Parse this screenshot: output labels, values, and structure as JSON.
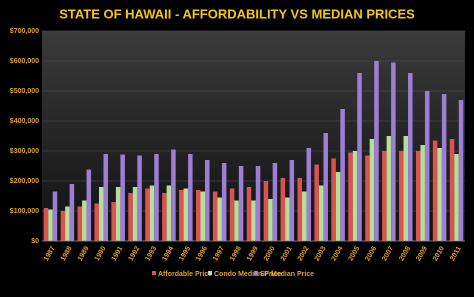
{
  "chart_data": {
    "type": "bar",
    "title": "STATE OF HAWAII - AFFORDABILITY VS MEDIAN PRICES",
    "categories": [
      "1987",
      "1988",
      "1989",
      "1990",
      "1991",
      "1992",
      "1993",
      "1994",
      "1995",
      "1996",
      "1997",
      "1998",
      "1999",
      "2000",
      "2001",
      "2002",
      "2003",
      "2004",
      "2005",
      "2006",
      "2007",
      "2008",
      "2009",
      "2010",
      "2011"
    ],
    "series": [
      {
        "name": "Affordable Price",
        "color": "#d9534f",
        "values": [
          110000,
          100000,
          115000,
          125000,
          130000,
          160000,
          175000,
          160000,
          170000,
          170000,
          165000,
          175000,
          180000,
          200000,
          210000,
          210000,
          255000,
          275000,
          295000,
          285000,
          300000,
          300000,
          300000,
          335000,
          340000
        ]
      },
      {
        "name": "Condo Median Price",
        "color": "#b8dc9a",
        "values": [
          105000,
          115000,
          135000,
          180000,
          180000,
          180000,
          185000,
          185000,
          175000,
          165000,
          145000,
          135000,
          135000,
          140000,
          145000,
          165000,
          185000,
          230000,
          300000,
          340000,
          350000,
          350000,
          320000,
          310000,
          290000
        ]
      },
      {
        "name": "SF Median Price",
        "color": "#9b7fd4",
        "values": [
          165000,
          190000,
          238000,
          290000,
          288000,
          285000,
          290000,
          305000,
          290000,
          270000,
          260000,
          250000,
          250000,
          260000,
          270000,
          310000,
          360000,
          440000,
          560000,
          600000,
          595000,
          560000,
          500000,
          490000,
          470000
        ]
      }
    ],
    "ylim": [
      0,
      700000
    ],
    "yticks": [
      {
        "value": 0,
        "label": "$0"
      },
      {
        "value": 100000,
        "label": "$100,000"
      },
      {
        "value": 200000,
        "label": "$200,000"
      },
      {
        "value": 300000,
        "label": "$300,000"
      },
      {
        "value": 400000,
        "label": "$400,000"
      },
      {
        "value": 500000,
        "label": "$500,000"
      },
      {
        "value": 600000,
        "label": "$600,000"
      },
      {
        "value": 700000,
        "label": "$700,000"
      }
    ],
    "grid": true,
    "legend": "bottom"
  }
}
